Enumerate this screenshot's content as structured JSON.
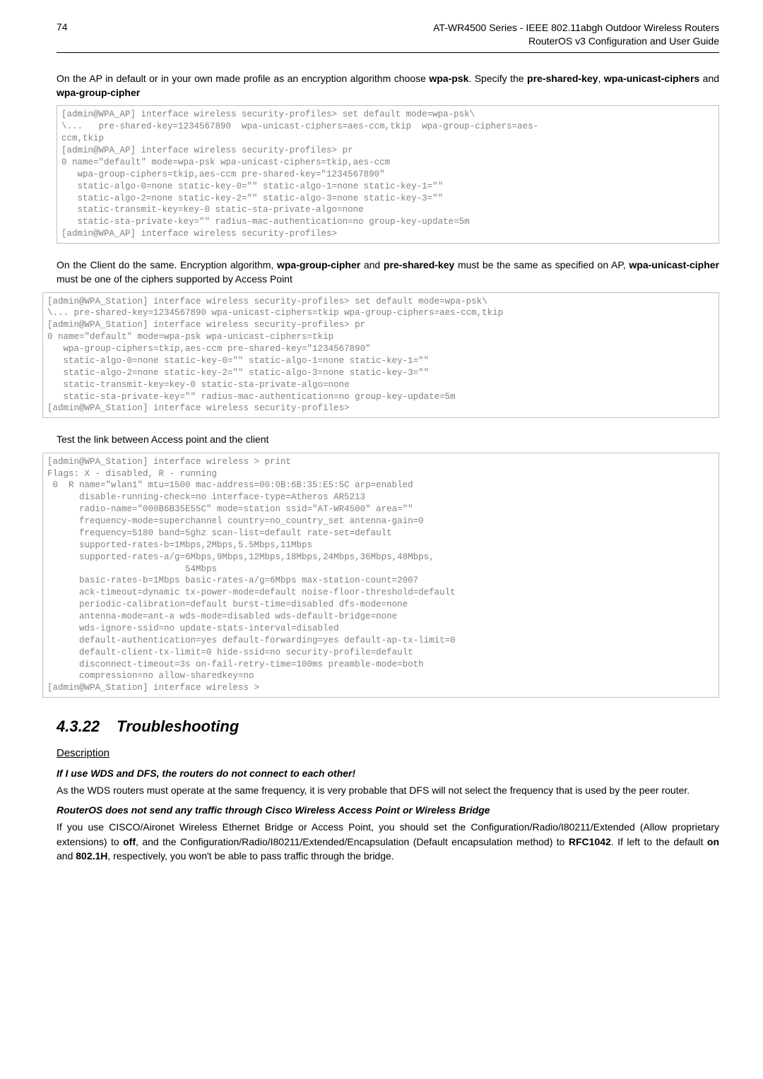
{
  "header": {
    "page_number": "74",
    "title_line1": "AT-WR4500 Series - IEEE 802.11abgh Outdoor Wireless Routers",
    "title_line2": "RouterOS v3 Configuration and User Guide"
  },
  "para1_pre": "On the AP in default or in your own made profile as an encryption algorithm choose ",
  "bold_wpapsk": "wpa-psk",
  "para1_mid": ". Specify the ",
  "bold_presharedkey": "pre-shared-key",
  "comma_sp": ", ",
  "bold_unicast": "wpa-unicast-ciphers",
  "and_sp": " and ",
  "bold_group": "wpa-group-cipher",
  "code1": "[admin@WPA_AP] interface wireless security-profiles> set default mode=wpa-psk\\\n\\...   pre-shared-key=1234567890  wpa-unicast-ciphers=aes-ccm,tkip  wpa-group-ciphers=aes-\nccm,tkip\n[admin@WPA_AP] interface wireless security-profiles> pr\n0 name=\"default\" mode=wpa-psk wpa-unicast-ciphers=tkip,aes-ccm\n   wpa-group-ciphers=tkip,aes-ccm pre-shared-key=\"1234567890\"\n   static-algo-0=none static-key-0=\"\" static-algo-1=none static-key-1=\"\"\n   static-algo-2=none static-key-2=\"\" static-algo-3=none static-key-3=\"\"\n   static-transmit-key=key-0 static-sta-private-algo=none\n   static-sta-private-key=\"\" radius-mac-authentication=no group-key-update=5m\n[admin@WPA_AP] interface wireless security-profiles>",
  "para2_pre": "On the Client do the same. Encryption algorithm, ",
  "para2_mid1": " and ",
  "para2_mid2": " must be the same as specified on AP, ",
  "para2_end": " must be one of the ciphers supported by Access Point",
  "bold_unicast2": "wpa-unicast-cipher",
  "code2": "[admin@WPA_Station] interface wireless security-profiles> set default mode=wpa-psk\\\n\\... pre-shared-key=1234567890 wpa-unicast-ciphers=tkip wpa-group-ciphers=aes-ccm,tkip\n[admin@WPA_Station] interface wireless security-profiles> pr\n0 name=\"default\" mode=wpa-psk wpa-unicast-ciphers=tkip\n   wpa-group-ciphers=tkip,aes-ccm pre-shared-key=\"1234567890\"\n   static-algo-0=none static-key-0=\"\" static-algo-1=none static-key-1=\"\"\n   static-algo-2=none static-key-2=\"\" static-algo-3=none static-key-3=\"\"\n   static-transmit-key=key-0 static-sta-private-algo=none\n   static-sta-private-key=\"\" radius-mac-authentication=no group-key-update=5m\n[admin@WPA_Station] interface wireless security-profiles>",
  "para3": "Test the link between Access point and the client",
  "code3": "[admin@WPA_Station] interface wireless > print\nFlags: X - disabled, R - running\n 0  R name=\"wlan1\" mtu=1500 mac-address=00:0B:6B:35:E5:5C arp=enabled\n      disable-running-check=no interface-type=Atheros AR5213\n      radio-name=\"000B6B35E55C\" mode=station ssid=\"AT-WR4500\" area=\"\"\n      frequency-mode=superchannel country=no_country_set antenna-gain=0\n      frequency=5180 band=5ghz scan-list=default rate-set=default\n      supported-rates-b=1Mbps,2Mbps,5.5Mbps,11Mbps\n      supported-rates-a/g=6Mbps,9Mbps,12Mbps,18Mbps,24Mbps,36Mbps,48Mbps,\n                          54Mbps\n      basic-rates-b=1Mbps basic-rates-a/g=6Mbps max-station-count=2007\n      ack-timeout=dynamic tx-power-mode=default noise-floor-threshold=default\n      periodic-calibration=default burst-time=disabled dfs-mode=none\n      antenna-mode=ant-a wds-mode=disabled wds-default-bridge=none\n      wds-ignore-ssid=no update-stats-interval=disabled\n      default-authentication=yes default-forwarding=yes default-ap-tx-limit=0\n      default-client-tx-limit=0 hide-ssid=no security-profile=default\n      disconnect-timeout=3s on-fail-retry-time=100ms preamble-mode=both\n      compression=no allow-sharedkey=no\n[admin@WPA_Station] interface wireless >",
  "section": {
    "num": "4.3.22",
    "title": "Troubleshooting"
  },
  "descr": "Description",
  "q1": "If I use WDS and DFS, the routers do not connect to each other!",
  "a1": "As the WDS routers must operate at the same frequency, it is very probable that DFS will not select the frequency that is used by the peer router.",
  "q2": "RouterOS does not send any traffic through Cisco Wireless Access Point or Wireless Bridge",
  "a2_pre": "If you use CISCO/Aironet Wireless Ethernet Bridge or Access Point, you should set the Configuration/Radio/I80211/Extended (Allow proprietary extensions) to ",
  "bold_off": "off",
  "a2_mid": ", and the Configuration/Radio/I80211/Extended/Encapsulation (Default encapsulation method) to ",
  "bold_rfc": "RFC1042",
  "a2_mid2": ". If left to the default ",
  "bold_on": "on",
  "a2_mid3": " and ",
  "bold_802": "802.1H",
  "a2_end": ", respectively, you won't be able to pass traffic through the bridge."
}
